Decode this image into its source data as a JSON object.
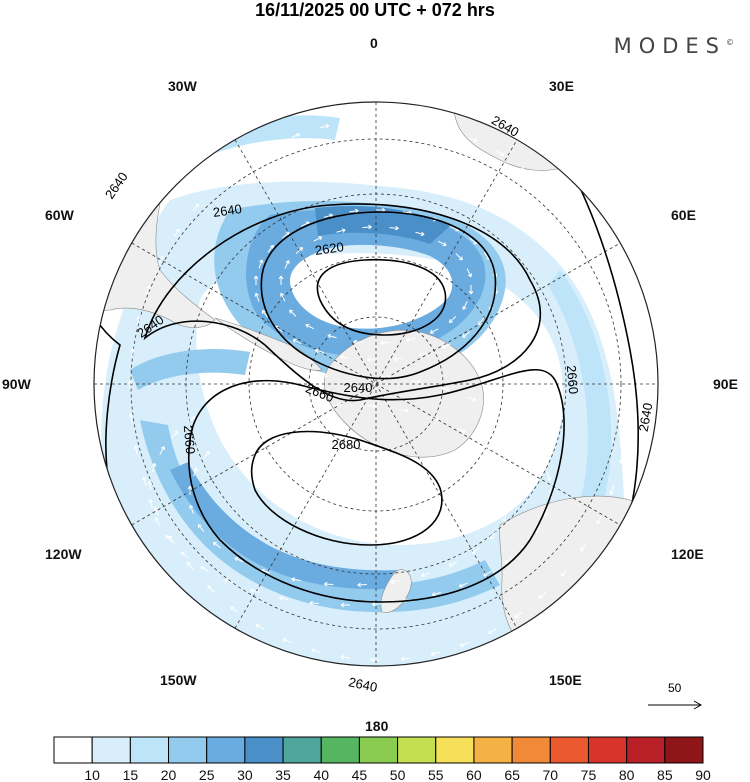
{
  "header": {
    "title": "16/11/2025  00 UTC  + 072 hrs",
    "logo": "MODES",
    "logo_mark": "©"
  },
  "map": {
    "projection": "south polar stereographic",
    "longitude_labels": [
      "0",
      "30E",
      "60E",
      "90E",
      "120E",
      "150E",
      "180",
      "150W",
      "120W",
      "90W",
      "60W",
      "30W"
    ],
    "contour_labels": [
      "2640",
      "2640",
      "2640",
      "2640",
      "2620",
      "2640",
      "2660",
      "2660",
      "2680",
      "2660",
      "2640",
      "2640"
    ],
    "reference_vector_label": "50"
  },
  "colorbar": {
    "labels": [
      "10",
      "15",
      "20",
      "25",
      "30",
      "35",
      "40",
      "45",
      "50",
      "55",
      "60",
      "65",
      "70",
      "75",
      "80",
      "85",
      "90"
    ],
    "colors": [
      "#ffffff",
      "#d8effb",
      "#bde4f8",
      "#93cbee",
      "#6aabe0",
      "#4a8fc8",
      "#4ea59a",
      "#55b560",
      "#8acc52",
      "#c3de4f",
      "#f6e05a",
      "#f4b246",
      "#f08a38",
      "#ea5a2e",
      "#d8342a",
      "#b81f26",
      "#8e1518"
    ]
  },
  "colors": {
    "land": "#efefef",
    "contour": "#000000",
    "grid": "#333333",
    "wind_arrow": "#ffffff"
  }
}
